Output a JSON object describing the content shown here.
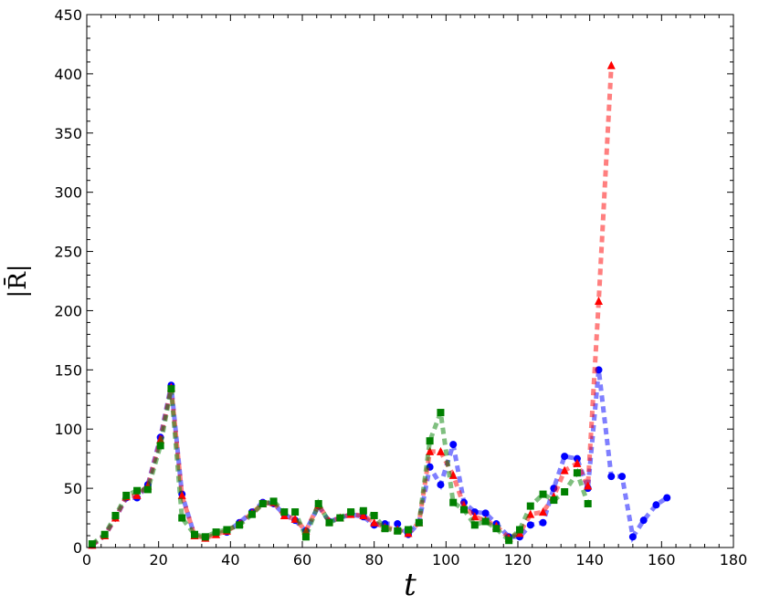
{
  "chart_data": {
    "type": "line",
    "xlabel": "t",
    "ylabel": "|R̄|",
    "xlim": [
      0,
      180
    ],
    "ylim": [
      0,
      450
    ],
    "xticks": [
      0,
      20,
      40,
      60,
      80,
      100,
      120,
      140,
      160,
      180
    ],
    "yticks": [
      0,
      50,
      100,
      150,
      200,
      250,
      300,
      350,
      400,
      450
    ],
    "grid": false,
    "legend": "none",
    "series": [
      {
        "color": "#0000ff",
        "marker": "circle",
        "x": [
          1.5,
          5,
          8,
          11,
          14,
          17,
          20.5,
          23.5,
          26.5,
          30,
          33,
          36,
          39,
          42.5,
          46,
          49,
          52,
          55,
          58,
          61,
          64.5,
          67.5,
          70.5,
          73.5,
          77,
          80,
          83,
          86.5,
          89.5,
          92.5,
          95.5,
          98.5,
          102,
          105,
          108,
          111,
          114,
          117.5,
          120.5,
          123.5,
          127,
          130,
          133,
          136.5,
          139.5,
          142.5,
          146,
          149,
          152,
          155,
          158.5,
          161.5
        ],
        "y": [
          2,
          10,
          25,
          42,
          42,
          53,
          93,
          137,
          45,
          10,
          8,
          12,
          13,
          21,
          30,
          38,
          37,
          28,
          23,
          14,
          35,
          22,
          25,
          28,
          26,
          19,
          20,
          20,
          11,
          21,
          68,
          53,
          87,
          38,
          30,
          29,
          20,
          9,
          9,
          19,
          21,
          50,
          77,
          75,
          50,
          150,
          60,
          60,
          9,
          23,
          36,
          42
        ]
      },
      {
        "color": "#ff0000",
        "marker": "triangle",
        "x": [
          1.5,
          5,
          8,
          11,
          14,
          17,
          20.5,
          23.5,
          26.5,
          30,
          33,
          36,
          39,
          42.5,
          46,
          49,
          52,
          55,
          58,
          61,
          64.5,
          67.5,
          70.5,
          73.5,
          77,
          80,
          83,
          86.5,
          89.5,
          92.5,
          95.5,
          98.5,
          102,
          105,
          108,
          111,
          114,
          117.5,
          120.5,
          123.5,
          127,
          130,
          133,
          136.5,
          139.5,
          142.5,
          146
        ],
        "y": [
          2,
          10,
          25,
          43,
          44,
          52,
          91,
          135,
          44,
          10,
          8,
          11,
          14,
          20,
          29,
          37,
          38,
          27,
          24,
          14,
          36,
          22,
          25,
          28,
          27,
          21,
          17,
          15,
          12,
          21,
          81,
          81,
          61,
          35,
          26,
          23,
          18,
          8,
          12,
          28,
          30,
          43,
          65,
          71,
          52,
          208,
          407
        ]
      },
      {
        "color": "#008000",
        "marker": "square",
        "x": [
          1.5,
          5,
          8,
          11,
          14,
          17,
          20.5,
          23.5,
          26.5,
          30,
          33,
          36,
          39,
          42.5,
          46,
          49,
          52,
          55,
          58,
          61,
          64.5,
          67.5,
          70.5,
          73.5,
          77,
          80,
          83,
          86.5,
          89.5,
          92.5,
          95.5,
          98.5,
          102,
          105,
          108,
          111,
          114,
          117.5,
          120.5,
          123.5,
          127,
          130,
          133,
          136.5,
          139.5
        ],
        "y": [
          3,
          11,
          27,
          44,
          48,
          49,
          86,
          134,
          25,
          11,
          9,
          13,
          15,
          19,
          28,
          37,
          39,
          30,
          30,
          9,
          37,
          21,
          25,
          30,
          31,
          27,
          16,
          14,
          15,
          21,
          90,
          114,
          38,
          32,
          19,
          22,
          16,
          6,
          15,
          35,
          45,
          40,
          47,
          63,
          37
        ]
      }
    ]
  }
}
